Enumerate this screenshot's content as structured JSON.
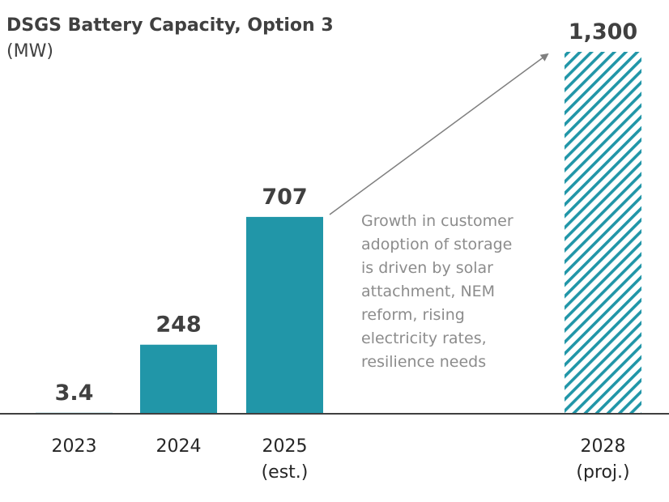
{
  "chart_data": {
    "type": "bar",
    "title": "DSGS Battery Capacity, Option 3",
    "subtitle": "(MW)",
    "categories": [
      [
        "2023"
      ],
      [
        "2024"
      ],
      [
        "2025",
        "(est.)"
      ],
      [
        "2028",
        "(proj.)"
      ]
    ],
    "values": [
      3.4,
      248,
      707,
      1300
    ],
    "value_labels": [
      "3.4",
      "248",
      "707",
      "1,300"
    ],
    "styles": [
      "solid",
      "solid",
      "solid",
      "hatched"
    ],
    "ylim": [
      0,
      1300
    ],
    "grid": false,
    "colors": {
      "bar": "#2196a8",
      "text": "#404040",
      "annotation": "#8c8c8c",
      "axis": "#404040",
      "arrow": "#7f7f7f"
    },
    "annotation": [
      "Growth in customer",
      "adoption of storage",
      "is driven by solar",
      "attachment, NEM",
      "reform, rising",
      "electricity rates,",
      "resilience needs"
    ]
  }
}
